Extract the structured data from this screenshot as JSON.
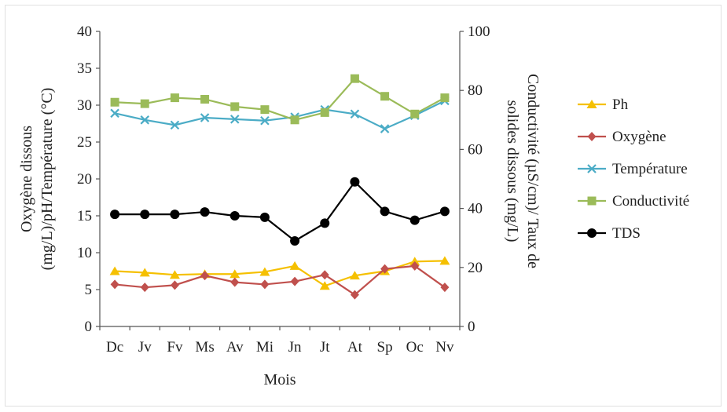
{
  "chart_data": {
    "type": "line",
    "xlabel": "Mois",
    "ylabel_left": [
      "Oxygène dissous",
      "(mg/L)/pH/Température (°C)"
    ],
    "ylabel_right": [
      "Conductivité (µS/cm)/ Taux de",
      "solides dissous (mg/L)"
    ],
    "categories": [
      "Dc",
      "Jv",
      "Fv",
      "Ms",
      "Av",
      "Mi",
      "Jn",
      "Jt",
      "At",
      "Sp",
      "Oc",
      "Nv"
    ],
    "ylim_left": [
      0,
      40
    ],
    "yticks_left": [
      0,
      5,
      10,
      15,
      20,
      25,
      30,
      35,
      40
    ],
    "ylim_right": [
      0,
      100
    ],
    "yticks_right": [
      0,
      20,
      40,
      60,
      80,
      100
    ],
    "grid": false,
    "legend_position": "right",
    "series": [
      {
        "name": "Ph",
        "axis": "left",
        "color": "#f5c000",
        "marker": "triangle",
        "values": [
          7.5,
          7.3,
          7.0,
          7.1,
          7.1,
          7.4,
          8.2,
          5.5,
          6.9,
          7.5,
          8.8,
          8.9
        ]
      },
      {
        "name": "Oxygène",
        "axis": "left",
        "color": "#c0504d",
        "marker": "diamond",
        "values": [
          5.7,
          5.3,
          5.6,
          6.9,
          6.0,
          5.7,
          6.1,
          7.0,
          4.3,
          7.8,
          8.2,
          5.3
        ]
      },
      {
        "name": "Température",
        "axis": "left",
        "color": "#4bacc6",
        "marker": "x",
        "values": [
          28.9,
          28.0,
          27.3,
          28.3,
          28.1,
          27.9,
          28.4,
          29.4,
          28.8,
          26.8,
          28.6,
          30.6
        ]
      },
      {
        "name": "Conductivité",
        "axis": "right",
        "color": "#9bbb59",
        "marker": "square",
        "values": [
          76,
          75.5,
          77.5,
          77,
          74.5,
          73.5,
          70,
          72.5,
          84,
          78,
          72,
          77.5
        ]
      },
      {
        "name": "TDS",
        "axis": "right",
        "color": "#000000",
        "marker": "circle",
        "values": [
          38,
          38,
          38,
          38.8,
          37.5,
          37,
          29,
          35,
          49,
          39,
          36,
          39
        ]
      }
    ]
  }
}
